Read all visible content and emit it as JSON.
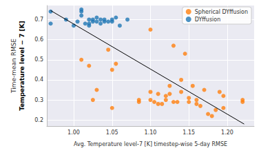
{
  "chart_data": {
    "type": "scatter",
    "xlabel": "Avg. Temperature level-7 [K] timestep-wise 5-day RMSE",
    "ylabel": [
      "Time-mean RMSE",
      "Temperature level − 7 [K]"
    ],
    "xlim": [
      0.965,
      1.235
    ],
    "ylim": [
      0.17,
      0.77
    ],
    "xticks": [
      {
        "value": 1.0,
        "label": "1.00"
      },
      {
        "value": 1.05,
        "label": "1.05"
      },
      {
        "value": 1.1,
        "label": "1.10"
      },
      {
        "value": 1.15,
        "label": "1.15"
      },
      {
        "value": 1.2,
        "label": "1.20"
      }
    ],
    "yticks": [
      0.2,
      0.3,
      0.4,
      0.5,
      0.6,
      0.7
    ],
    "grid": true,
    "legend": "upper right",
    "series": [
      {
        "name": "Spherical DYffusion",
        "color": "#ff7f0e",
        "marker": "circle",
        "x": [
          1.01,
          1.02,
          1.025,
          1.03,
          1.045,
          1.05,
          1.05,
          1.055,
          1.085,
          1.085,
          1.1,
          1.1,
          1.1,
          1.105,
          1.11,
          1.11,
          1.115,
          1.12,
          1.12,
          1.125,
          1.125,
          1.13,
          1.13,
          1.135,
          1.14,
          1.14,
          1.145,
          1.15,
          1.15,
          1.155,
          1.16,
          1.16,
          1.165,
          1.17,
          1.175,
          1.18,
          1.185,
          1.19,
          1.195,
          1.195,
          1.22,
          1.22
        ],
        "values": [
          0.5,
          0.47,
          0.3,
          0.35,
          0.55,
          0.26,
          0.45,
          0.48,
          0.3,
          0.29,
          0.65,
          0.34,
          0.3,
          0.29,
          0.33,
          0.28,
          0.28,
          0.3,
          0.32,
          0.33,
          0.37,
          0.57,
          0.29,
          0.29,
          0.4,
          0.34,
          0.53,
          0.29,
          0.31,
          0.37,
          0.3,
          0.28,
          0.27,
          0.35,
          0.23,
          0.22,
          0.25,
          0.34,
          0.32,
          0.26,
          0.3,
          0.29
        ]
      },
      {
        "name": "DYffusion",
        "color": "#1f77b4",
        "marker": "circle",
        "x": [
          0.97,
          0.97,
          0.99,
          1.0,
          1.005,
          1.01,
          1.01,
          1.01,
          1.015,
          1.02,
          1.02,
          1.02,
          1.025,
          1.025,
          1.03,
          1.03,
          1.035,
          1.035,
          1.04,
          1.04,
          1.045,
          1.05,
          1.05,
          1.055,
          1.06,
          1.07
        ],
        "values": [
          0.74,
          0.68,
          0.7,
          0.67,
          0.69,
          0.72,
          0.75,
          0.74,
          0.68,
          0.7,
          0.67,
          0.68,
          0.7,
          0.69,
          0.71,
          0.69,
          0.7,
          0.68,
          0.69,
          0.7,
          0.69,
          0.69,
          0.7,
          0.71,
          0.67,
          0.7
        ]
      },
      {
        "type": "line",
        "color": "#000000",
        "line_style": "solid",
        "x": [
          0.97,
          1.222
        ],
        "values": [
          0.745,
          0.18
        ]
      }
    ]
  }
}
